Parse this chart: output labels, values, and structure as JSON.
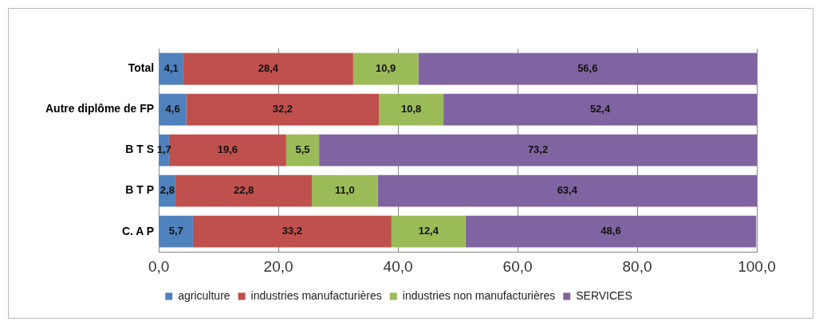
{
  "chart_data": {
    "type": "bar",
    "orientation": "horizontal",
    "stacked": true,
    "categories": [
      "Total",
      "Autre diplôme de FP",
      "B T S",
      "B T P",
      "C. A P"
    ],
    "series": [
      {
        "name": "agriculture",
        "color": "#4f81bd",
        "values": [
          4.1,
          4.6,
          1.7,
          2.8,
          5.7
        ],
        "value_labels": [
          "4,1",
          "4,6",
          "1,7",
          "2,8",
          "5,7"
        ]
      },
      {
        "name": "industries manufacturières",
        "color": "#c0504d",
        "values": [
          28.4,
          32.2,
          19.6,
          22.8,
          33.2
        ],
        "value_labels": [
          "28,4",
          "32,2",
          "19,6",
          "22,8",
          "33,2"
        ]
      },
      {
        "name": "industries non manufacturières",
        "color": "#9bbb59",
        "values": [
          10.9,
          10.8,
          5.5,
          11.0,
          12.4
        ],
        "value_labels": [
          "10,9",
          "10,8",
          "5,5",
          "11,0",
          "12,4"
        ]
      },
      {
        "name": "SERVICES",
        "color": "#8064a2",
        "values": [
          56.6,
          52.4,
          73.2,
          63.4,
          48.6
        ],
        "value_labels": [
          "56,6",
          "52,4",
          "73,2",
          "63,4",
          "48,6"
        ]
      }
    ],
    "xlim": [
      0,
      100
    ],
    "xticks": [
      {
        "value": 0,
        "label": "0,0"
      },
      {
        "value": 20,
        "label": "20,0"
      },
      {
        "value": 40,
        "label": "40,0"
      },
      {
        "value": 60,
        "label": "60,0"
      },
      {
        "value": 80,
        "label": "80,0"
      },
      {
        "value": 100,
        "label": "100,0"
      }
    ],
    "grid": "x",
    "legend": "bottom"
  }
}
